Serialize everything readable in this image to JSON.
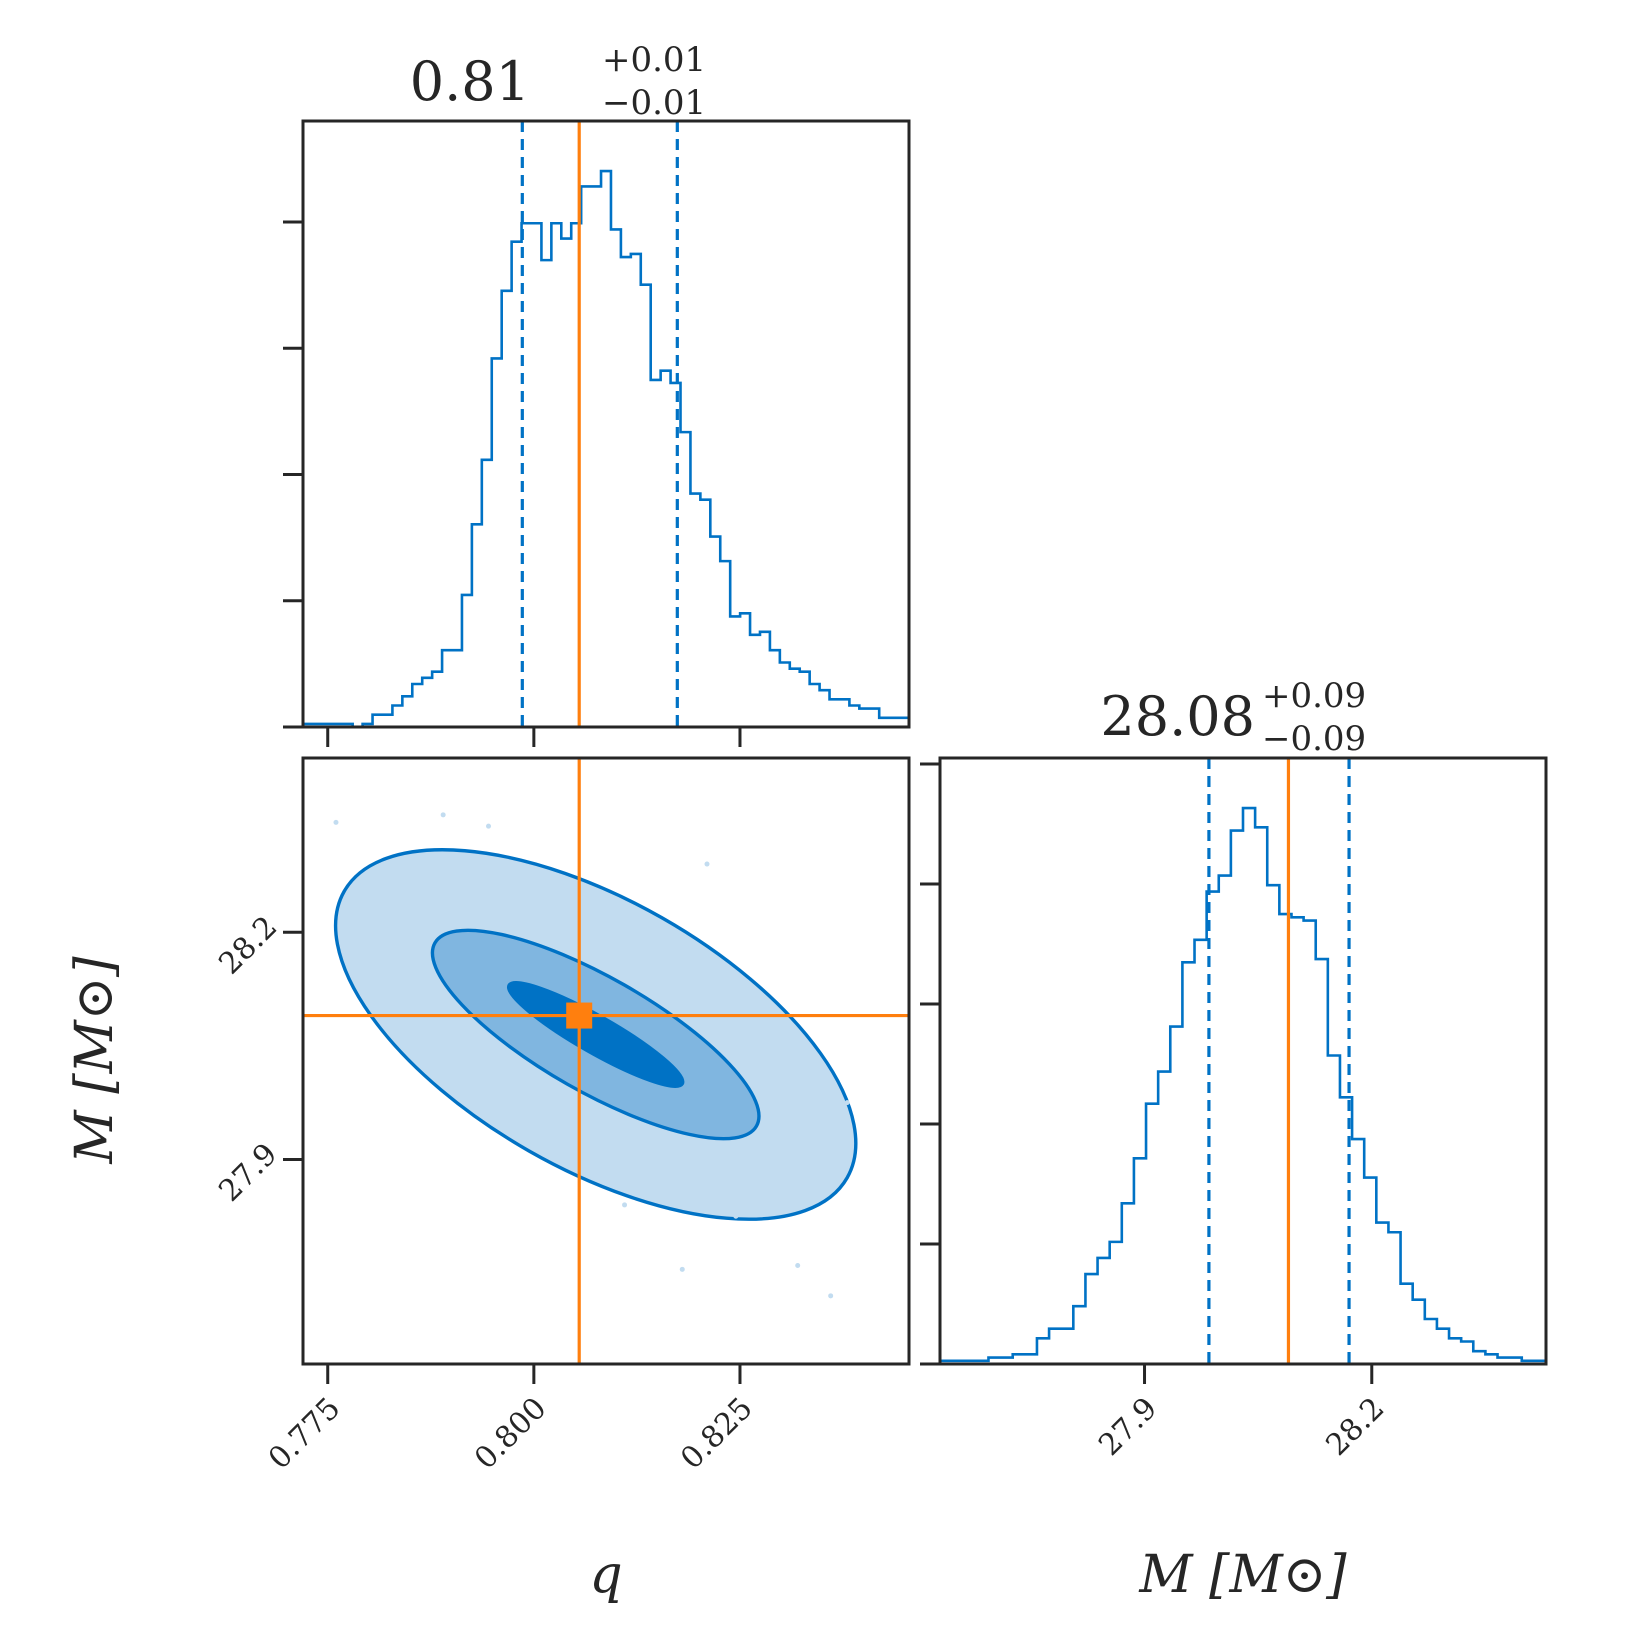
{
  "colors": {
    "posterior": "#0072c5",
    "truth": "#ff7f0e",
    "contour_fills": [
      "#c2dcf0",
      "#80b6e0",
      "#0072c5"
    ],
    "axes": "#262626"
  },
  "chart_data": {
    "type": "corner",
    "parameters": [
      {
        "name": "q",
        "label": "q",
        "title": {
          "main": "0.81",
          "plus": "+0.01",
          "minus": "−0.01"
        },
        "median": 0.81,
        "lower": 0.7986,
        "upper": 0.8174,
        "truth": 0.8055,
        "range": [
          0.772,
          0.8455
        ],
        "ticks": [
          0.775,
          0.8,
          0.825
        ],
        "tick_labels": [
          "0.775",
          "0.800",
          "0.825"
        ],
        "hist_bin_edges_range": [
          0.772,
          0.8455
        ],
        "hist_counts": [
          1,
          1,
          1,
          1,
          1,
          0,
          1,
          4,
          4,
          7,
          10,
          14,
          16,
          18,
          25,
          25,
          43,
          66,
          87,
          120,
          142,
          158,
          164,
          164,
          152,
          164,
          159,
          164,
          176,
          176,
          181,
          162,
          153,
          154,
          144,
          113,
          116,
          112,
          96,
          76,
          74,
          62,
          54,
          36,
          37,
          30,
          31,
          25,
          21,
          19,
          18,
          14,
          12,
          9,
          9,
          7,
          6,
          6,
          3,
          3,
          3
        ]
      },
      {
        "name": "M",
        "label": "M  [M⊙]",
        "title": {
          "main": "28.08",
          "plus": "+0.09",
          "minus": "−0.09"
        },
        "median": 28.08,
        "lower": 27.985,
        "upper": 28.17,
        "truth": 28.09,
        "range": [
          27.63,
          28.43
        ],
        "ticks": [
          27.9,
          28.2
        ],
        "tick_labels": [
          "27.9",
          "28.2"
        ],
        "hist_bin_edges_range": [
          27.63,
          28.43
        ],
        "hist_counts": [
          1,
          1,
          1,
          1,
          2,
          2,
          3,
          3,
          8,
          11,
          11,
          18,
          28,
          33,
          38,
          50,
          64,
          81,
          91,
          105,
          125,
          132,
          147,
          152,
          166,
          173,
          167,
          149,
          140,
          139,
          138,
          126,
          96,
          83,
          70,
          58,
          44,
          41,
          25,
          20,
          14,
          11,
          8,
          7,
          4,
          3,
          2,
          2,
          1,
          1
        ]
      }
    ],
    "joint": {
      "x": "q",
      "y": "M",
      "levels": [
        "1-sigma",
        "2-sigma",
        "3-sigma"
      ],
      "truth_point": [
        0.8055,
        28.09
      ]
    }
  }
}
